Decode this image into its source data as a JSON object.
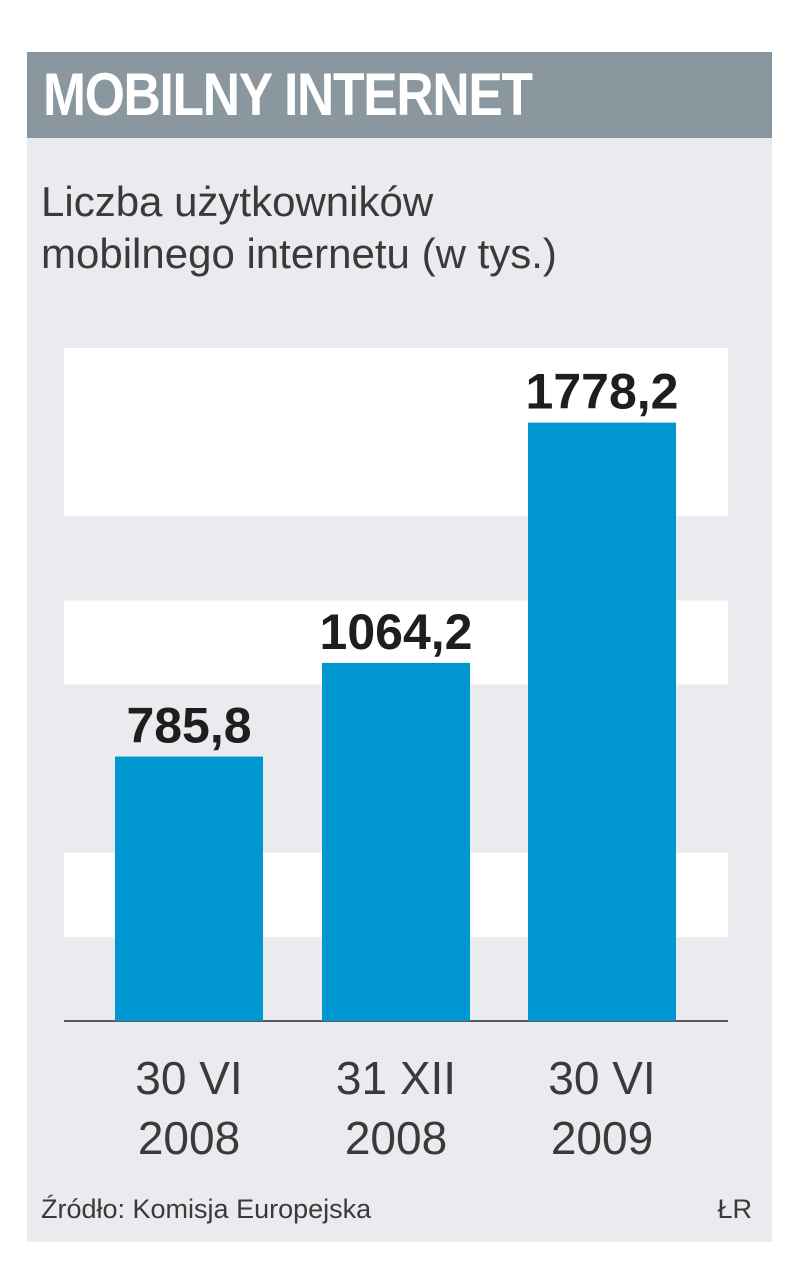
{
  "header": {
    "title": "MOBILNY INTERNET"
  },
  "subtitle_lines": [
    "Liczba użytkowników",
    "mobilnego internetu (w tys.)"
  ],
  "footer": {
    "source": "Źródło: Komisja Europejska",
    "author": "ŁR"
  },
  "colors": {
    "bar": "#0096cf",
    "band": "#ffffff",
    "background": "#e9ebee",
    "header_bg": "#8a979e",
    "value_label": "#1e1e1e"
  },
  "chart_data": {
    "type": "bar",
    "title": "MOBILNY INTERNET",
    "subtitle": "Liczba użytkowników mobilnego internetu (w tys.)",
    "categories": [
      [
        "30 VI",
        "2008"
      ],
      [
        "31 XII",
        "2008"
      ],
      [
        "30 VI",
        "2009"
      ]
    ],
    "values": [
      785.8,
      1064.2,
      1778.2
    ],
    "value_labels": [
      "785,8",
      "1064,2",
      "1778,2"
    ],
    "ylim": [
      0,
      2000
    ],
    "bands": [
      [
        250,
        500
      ],
      [
        1000,
        1250
      ],
      [
        1500,
        2000
      ]
    ],
    "xlabel": "",
    "ylabel": "",
    "legend": "none",
    "grid": "alternating horizontal bands"
  }
}
